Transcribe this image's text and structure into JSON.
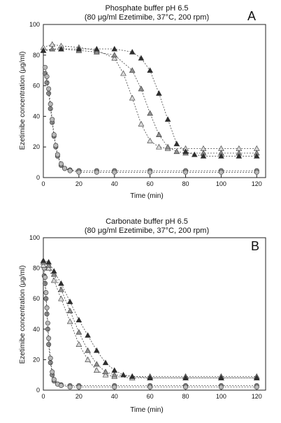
{
  "chart_data": [
    {
      "type": "scatter",
      "panel_label": "A",
      "title": "Phosphate buffer pH 6.5",
      "subtitle": "(80 μg/ml Ezetimibe, 37°C, 200 rpm)",
      "xlabel": "Time (min)",
      "ylabel": "Ezetimibe concentration (μg/ml)",
      "xlim": [
        0,
        125
      ],
      "ylim": [
        0,
        100
      ],
      "xticks": [
        "0",
        "20",
        "40",
        "60",
        "80",
        "100",
        "120"
      ],
      "yticks": [
        "0",
        "20",
        "40",
        "60",
        "80",
        "100"
      ],
      "grid": false,
      "series": [
        {
          "marker": "circle",
          "color": "#8a8a8a",
          "x": [
            1,
            2,
            3,
            4,
            5,
            6,
            7,
            8,
            10,
            12,
            15,
            20,
            30,
            40,
            60,
            80,
            100,
            120
          ],
          "y": [
            68,
            62,
            55,
            45,
            36,
            27,
            20,
            14,
            8,
            6,
            5,
            4.5,
            4.5,
            4.5,
            4.5,
            4.5,
            4.5,
            4.5
          ]
        },
        {
          "marker": "circle",
          "color": "#b8b8b8",
          "x": [
            1,
            2,
            3,
            4,
            5,
            6,
            7,
            8,
            10,
            12,
            15,
            20,
            30,
            40,
            60,
            80,
            100,
            120
          ],
          "y": [
            72,
            66,
            58,
            48,
            38,
            28,
            21,
            15,
            9,
            6,
            4.5,
            3.5,
            3.5,
            3.5,
            3.5,
            3.5,
            3.5,
            3.5
          ]
        },
        {
          "marker": "triangle",
          "color": "#d8d8d8",
          "x": [
            0,
            5,
            10,
            20,
            30,
            40,
            45,
            50,
            55,
            60,
            65,
            70,
            80,
            90,
            100,
            110,
            120
          ],
          "y": [
            85,
            87,
            86,
            85,
            83,
            78,
            68,
            52,
            35,
            24,
            20,
            19,
            19,
            19,
            19,
            19,
            19
          ]
        },
        {
          "marker": "triangle",
          "color": "#909090",
          "x": [
            0,
            5,
            10,
            20,
            30,
            40,
            50,
            55,
            60,
            65,
            70,
            75,
            80,
            90,
            100,
            110,
            120
          ],
          "y": [
            83,
            84,
            84,
            83,
            82,
            80,
            70,
            58,
            42,
            28,
            20,
            17,
            16,
            16,
            16,
            16,
            16
          ]
        },
        {
          "marker": "triangle",
          "color": "#2e2e2e",
          "x": [
            0,
            10,
            20,
            30,
            40,
            50,
            55,
            60,
            65,
            70,
            75,
            80,
            85,
            90,
            100,
            110,
            120
          ],
          "y": [
            83,
            84,
            84,
            84,
            84,
            82,
            78,
            70,
            55,
            38,
            22,
            17,
            15,
            14,
            14,
            14,
            14
          ]
        }
      ]
    },
    {
      "type": "scatter",
      "panel_label": "B",
      "title": "Carbonate buffer pH 6.5",
      "subtitle": "(80 μg/ml Ezetimibe, 37°C, 200 rpm)",
      "xlabel": "Time (min)",
      "ylabel": "Ezetimibe concentration (μg/ml)",
      "xlim": [
        0,
        125
      ],
      "ylim": [
        0,
        100
      ],
      "xticks": [
        "0",
        "20",
        "40",
        "60",
        "80",
        "100",
        "120"
      ],
      "yticks": [
        "0",
        "20",
        "40",
        "60",
        "80",
        "100"
      ],
      "grid": false,
      "series": [
        {
          "marker": "circle",
          "color": "#8a8a8a",
          "x": [
            0.5,
            1,
            1.5,
            2,
            2.5,
            3,
            4,
            5,
            6,
            8,
            10,
            15,
            20,
            40,
            60,
            80,
            100,
            120
          ],
          "y": [
            75,
            70,
            60,
            50,
            40,
            30,
            18,
            10,
            6,
            4,
            3.5,
            3,
            3,
            3,
            3,
            3,
            3,
            3
          ]
        },
        {
          "marker": "circle",
          "color": "#b8b8b8",
          "x": [
            0.5,
            1,
            1.5,
            2,
            2.5,
            3,
            4,
            5,
            6,
            8,
            10,
            15,
            20,
            40,
            60,
            80,
            100,
            120
          ],
          "y": [
            80,
            74,
            64,
            54,
            44,
            34,
            21,
            12,
            7,
            4,
            3,
            2,
            2,
            2,
            2,
            2,
            2,
            2
          ]
        },
        {
          "marker": "triangle",
          "color": "#d8d8d8",
          "x": [
            0,
            3,
            6,
            10,
            15,
            20,
            25,
            30,
            35,
            40,
            50,
            60,
            80,
            100,
            120
          ],
          "y": [
            82,
            80,
            72,
            60,
            45,
            30,
            20,
            13,
            10,
            9,
            8,
            8,
            8,
            8,
            8
          ]
        },
        {
          "marker": "triangle",
          "color": "#909090",
          "x": [
            0,
            3,
            6,
            10,
            15,
            20,
            25,
            30,
            35,
            40,
            50,
            60,
            80,
            100,
            120
          ],
          "y": [
            84,
            82,
            76,
            66,
            52,
            38,
            26,
            17,
            12,
            10,
            9,
            9,
            9,
            9,
            9
          ]
        },
        {
          "marker": "triangle",
          "color": "#2e2e2e",
          "x": [
            0,
            3,
            6,
            10,
            15,
            20,
            25,
            30,
            35,
            40,
            45,
            50,
            60,
            80,
            100,
            120
          ],
          "y": [
            85,
            84,
            78,
            70,
            58,
            46,
            36,
            26,
            18,
            13,
            10,
            9,
            8,
            8,
            8,
            8
          ]
        }
      ]
    }
  ]
}
